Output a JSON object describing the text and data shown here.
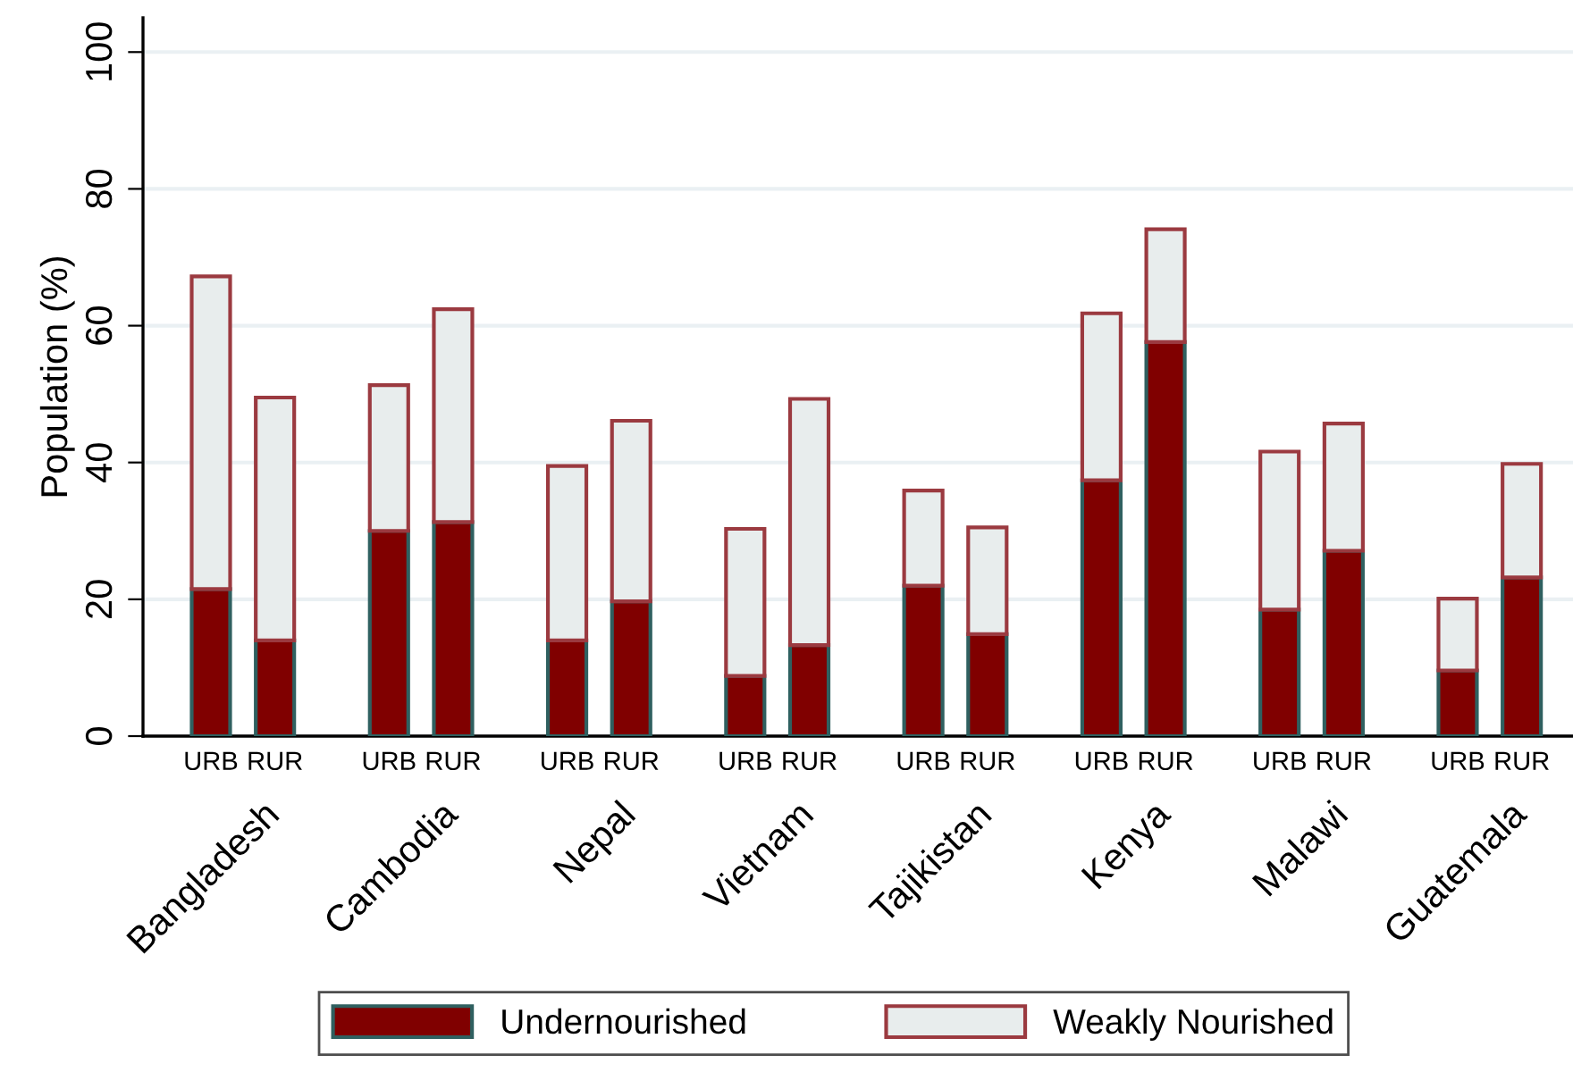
{
  "chart_data": {
    "type": "bar",
    "stacked": true,
    "ylabel": "Population (%)",
    "categories": [
      "URB",
      "RUR",
      "URB",
      "RUR",
      "URB",
      "RUR",
      "URB",
      "RUR",
      "URB",
      "RUR",
      "URB",
      "RUR",
      "URB",
      "RUR",
      "URB",
      "RUR"
    ],
    "series": [
      {
        "name": "Undernourished",
        "color": "#800000",
        "values": [
          21.5,
          14.0,
          30.0,
          31.3,
          14.0,
          19.7,
          8.8,
          13.3,
          22.0,
          14.9,
          37.4,
          57.6,
          18.5,
          27.1,
          9.6,
          23.2
        ]
      },
      {
        "name": "Weakly Nourished",
        "color": "#e8eded",
        "values": [
          45.7,
          35.5,
          21.3,
          31.1,
          25.5,
          26.4,
          21.5,
          36.0,
          13.9,
          15.6,
          24.4,
          16.5,
          23.1,
          18.6,
          10.5,
          16.6
        ]
      }
    ],
    "annotations": [
      "Bangladesh",
      "Cambodia",
      "Nepal",
      "Vietnam",
      "Tajikistan",
      "Kenya",
      "Malawi",
      "Guatemala"
    ],
    "ylim": [
      0,
      105
    ],
    "yticks": [
      0,
      20,
      40,
      60,
      80,
      100
    ],
    "grid": "y",
    "legend": "bottom"
  }
}
